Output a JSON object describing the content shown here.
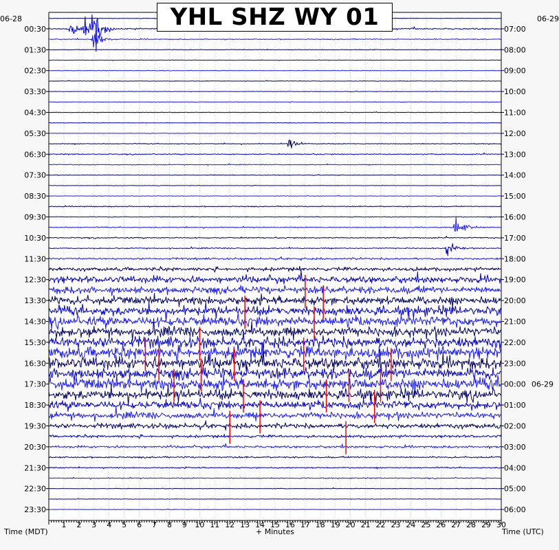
{
  "title": "YHL SHZ WY 01",
  "left_date": "06-28",
  "right_date": "06-29",
  "left_axis_title": "Time (MDT)",
  "right_axis_title": "Time (UTC)",
  "x_axis_title": "+ Minutes",
  "colors": {
    "background": "#f7f7f7",
    "plot_background": "#ffffff",
    "grid": "#bdbdbd",
    "trace_colors": [
      "#000066",
      "#0000cc",
      "#1a1aff"
    ],
    "clip_marker": "#ff0000"
  },
  "chart_data": {
    "type": "line",
    "description": "Helicorder (24h seismogram), 48 traces of 30 minutes each",
    "xlabel": "+ Minutes",
    "xlim": [
      0,
      30
    ],
    "x_ticks": [
      1,
      2,
      3,
      4,
      5,
      6,
      7,
      8,
      9,
      10,
      11,
      12,
      13,
      14,
      15,
      16,
      17,
      18,
      19,
      20,
      21,
      22,
      23,
      24,
      25,
      26,
      27,
      28,
      29,
      30
    ],
    "left_ticks": [
      "00:30",
      "01:30",
      "02:30",
      "03:30",
      "04:30",
      "05:30",
      "06:30",
      "07:30",
      "08:30",
      "09:30",
      "10:30",
      "11:30",
      "12:30",
      "13:30",
      "14:30",
      "15:30",
      "16:30",
      "17:30",
      "18:30",
      "19:30",
      "20:30",
      "21:30",
      "22:30",
      "23:30"
    ],
    "right_ticks": [
      "07:00",
      "08:00",
      "09:00",
      "10:00",
      "11:00",
      "12:00",
      "13:00",
      "14:00",
      "15:00",
      "16:00",
      "17:00",
      "18:00",
      "19:00",
      "20:00",
      "21:00",
      "22:00",
      "23:00",
      "00:00",
      "01:00",
      "02:00",
      "03:00",
      "04:00",
      "05:00",
      "06:00"
    ],
    "trace_count": 48,
    "trace_minutes": 30,
    "trace_amplitude_profile": [
      0.3,
      0.9,
      0.6,
      0.4,
      0.3,
      0.3,
      0.3,
      0.3,
      0.3,
      0.3,
      0.3,
      0.3,
      0.5,
      0.6,
      0.5,
      0.4,
      0.3,
      0.3,
      0.6,
      0.5,
      0.6,
      0.7,
      0.7,
      1.2,
      2.2,
      4.0,
      4.5,
      5.0,
      5.5,
      6.0,
      6.0,
      6.5,
      7.0,
      7.0,
      7.0,
      7.0,
      6.0,
      5.0,
      4.0,
      3.0,
      1.6,
      1.4,
      1.0,
      0.8,
      0.6,
      0.4,
      0.3,
      0.3
    ],
    "events": [
      {
        "trace": 1,
        "minute": 1.5,
        "amplitude": 7
      },
      {
        "trace": 1,
        "minute": 2.4,
        "amplitude": 12
      },
      {
        "trace": 1,
        "minute": 3.0,
        "amplitude": 26
      },
      {
        "trace": 2,
        "minute": 3.0,
        "amplitude": 14
      },
      {
        "trace": 12,
        "minute": 16.0,
        "amplitude": 7
      },
      {
        "trace": 20,
        "minute": 27.0,
        "amplitude": 14
      },
      {
        "trace": 22,
        "minute": 26.4,
        "amplitude": 10
      }
    ],
    "clipped_markers": [
      {
        "trace": 26,
        "minute": 17.0
      },
      {
        "trace": 27,
        "minute": 18.2
      },
      {
        "trace": 28,
        "minute": 13.0
      },
      {
        "trace": 29,
        "minute": 17.6
      },
      {
        "trace": 31,
        "minute": 10.0
      },
      {
        "trace": 32,
        "minute": 6.4
      },
      {
        "trace": 32,
        "minute": 16.9
      },
      {
        "trace": 33,
        "minute": 7.3
      },
      {
        "trace": 33,
        "minute": 12.3
      },
      {
        "trace": 33,
        "minute": 22.7
      },
      {
        "trace": 34,
        "minute": 10.1
      },
      {
        "trace": 35,
        "minute": 8.3
      },
      {
        "trace": 35,
        "minute": 19.9
      },
      {
        "trace": 35,
        "minute": 22.0
      },
      {
        "trace": 36,
        "minute": 12.9
      },
      {
        "trace": 36,
        "minute": 18.4
      },
      {
        "trace": 37,
        "minute": 21.6
      },
      {
        "trace": 38,
        "minute": 14.0
      },
      {
        "trace": 39,
        "minute": 12.0
      },
      {
        "trace": 40,
        "minute": 19.7
      }
    ]
  }
}
